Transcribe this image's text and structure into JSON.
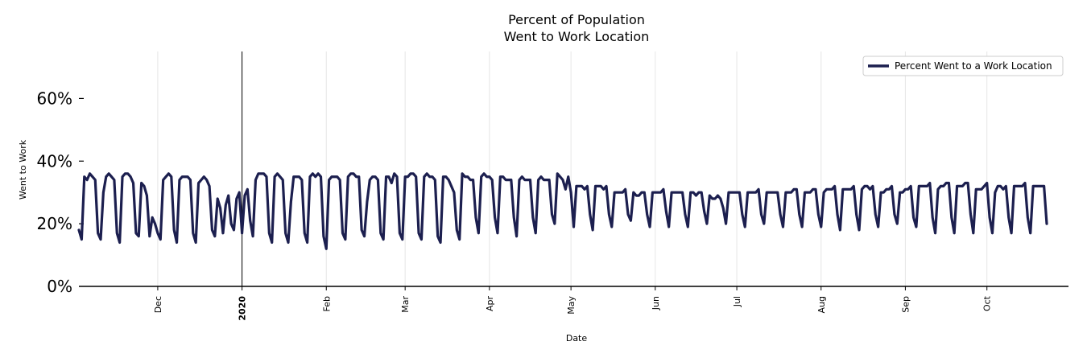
{
  "chart_data": {
    "type": "line",
    "title_line1": "Percent of Population",
    "title_line2": "Went to Work Location",
    "xlabel": "Date",
    "ylabel": "Went to Work",
    "ylim": [
      0,
      75
    ],
    "yticks": [
      {
        "value": 0,
        "label": "0%"
      },
      {
        "value": 20,
        "label": "20%"
      },
      {
        "value": 40,
        "label": "40%"
      },
      {
        "value": 60,
        "label": "60%"
      }
    ],
    "x_start": "2019-11-02",
    "x_end": "2020-10-31",
    "xticks": [
      {
        "date": "2019-12-01",
        "label": "Dec",
        "bold": false
      },
      {
        "date": "2020-01-01",
        "label": "2020",
        "bold": true
      },
      {
        "date": "2020-02-01",
        "label": "Feb",
        "bold": false
      },
      {
        "date": "2020-03-01",
        "label": "Mar",
        "bold": false
      },
      {
        "date": "2020-04-01",
        "label": "Apr",
        "bold": false
      },
      {
        "date": "2020-05-01",
        "label": "May",
        "bold": false
      },
      {
        "date": "2020-06-01",
        "label": "Jun",
        "bold": false
      },
      {
        "date": "2020-07-01",
        "label": "Jul",
        "bold": false
      },
      {
        "date": "2020-08-01",
        "label": "Aug",
        "bold": false
      },
      {
        "date": "2020-09-01",
        "label": "Sep",
        "bold": false
      },
      {
        "date": "2020-10-01",
        "label": "Oct",
        "bold": false
      }
    ],
    "vline_date": "2020-01-01",
    "grid": "vertical",
    "legend_position": "top-right",
    "series": [
      {
        "name": "Percent Went to a Work Location",
        "color": "#1c1f4f",
        "start_date": "2019-11-02",
        "values": [
          18,
          15,
          35,
          34,
          36,
          35,
          34,
          17,
          15,
          30,
          35,
          36,
          35,
          34,
          17,
          14,
          35,
          36,
          36,
          35,
          33,
          17,
          16,
          33,
          32,
          29,
          16,
          22,
          20,
          17,
          15,
          34,
          35,
          36,
          35,
          18,
          14,
          34,
          35,
          35,
          35,
          34,
          17,
          14,
          33,
          34,
          35,
          34,
          32,
          18,
          16,
          28,
          25,
          17,
          26,
          29,
          20,
          18,
          28,
          30,
          17,
          29,
          31,
          21,
          16,
          34,
          36,
          36,
          36,
          35,
          17,
          14,
          35,
          36,
          35,
          34,
          17,
          14,
          27,
          35,
          35,
          35,
          34,
          17,
          14,
          35,
          36,
          35,
          36,
          35,
          16,
          12,
          34,
          35,
          35,
          35,
          34,
          17,
          15,
          35,
          36,
          36,
          35,
          35,
          18,
          16,
          27,
          34,
          35,
          35,
          34,
          17,
          15,
          35,
          35,
          33,
          36,
          35,
          17,
          15,
          35,
          35,
          36,
          36,
          35,
          17,
          15,
          35,
          36,
          35,
          35,
          34,
          16,
          14,
          35,
          35,
          34,
          32,
          30,
          18,
          15,
          36,
          35,
          35,
          34,
          34,
          22,
          17,
          35,
          36,
          35,
          35,
          34,
          22,
          17,
          35,
          35,
          34,
          34,
          34,
          22,
          16,
          34,
          35,
          34,
          34,
          34,
          22,
          17,
          34,
          35,
          34,
          34,
          34,
          23,
          20,
          36,
          35,
          34,
          31,
          35,
          30,
          19,
          32,
          32,
          32,
          31,
          32,
          23,
          18,
          32,
          32,
          32,
          31,
          32,
          23,
          19,
          30,
          30,
          30,
          30,
          31,
          23,
          21,
          30,
          29,
          29,
          30,
          30,
          23,
          19,
          30,
          30,
          30,
          30,
          31,
          24,
          19,
          30,
          30,
          30,
          30,
          30,
          23,
          19,
          30,
          30,
          29,
          30,
          30,
          24,
          20,
          29,
          28,
          28,
          29,
          28,
          25,
          20,
          30,
          30,
          30,
          30,
          30,
          23,
          19,
          30,
          30,
          30,
          30,
          31,
          23,
          20,
          30,
          30,
          30,
          30,
          30,
          23,
          19,
          30,
          30,
          30,
          31,
          31,
          23,
          19,
          30,
          30,
          30,
          31,
          31,
          23,
          19,
          30,
          31,
          31,
          31,
          32,
          23,
          18,
          31,
          31,
          31,
          31,
          32,
          23,
          18,
          31,
          32,
          32,
          31,
          32,
          23,
          19,
          30,
          30,
          31,
          31,
          32,
          23,
          20,
          30,
          30,
          31,
          31,
          32,
          22,
          19,
          32,
          32,
          32,
          32,
          33,
          22,
          17,
          31,
          32,
          32,
          33,
          33,
          22,
          17,
          32,
          32,
          32,
          33,
          33,
          23,
          17,
          31,
          31,
          31,
          32,
          33,
          22,
          17,
          30,
          32,
          32,
          31,
          32,
          22,
          17,
          32,
          32,
          32,
          32,
          33,
          22,
          17,
          32,
          32,
          32,
          32,
          32,
          20
        ]
      }
    ]
  }
}
